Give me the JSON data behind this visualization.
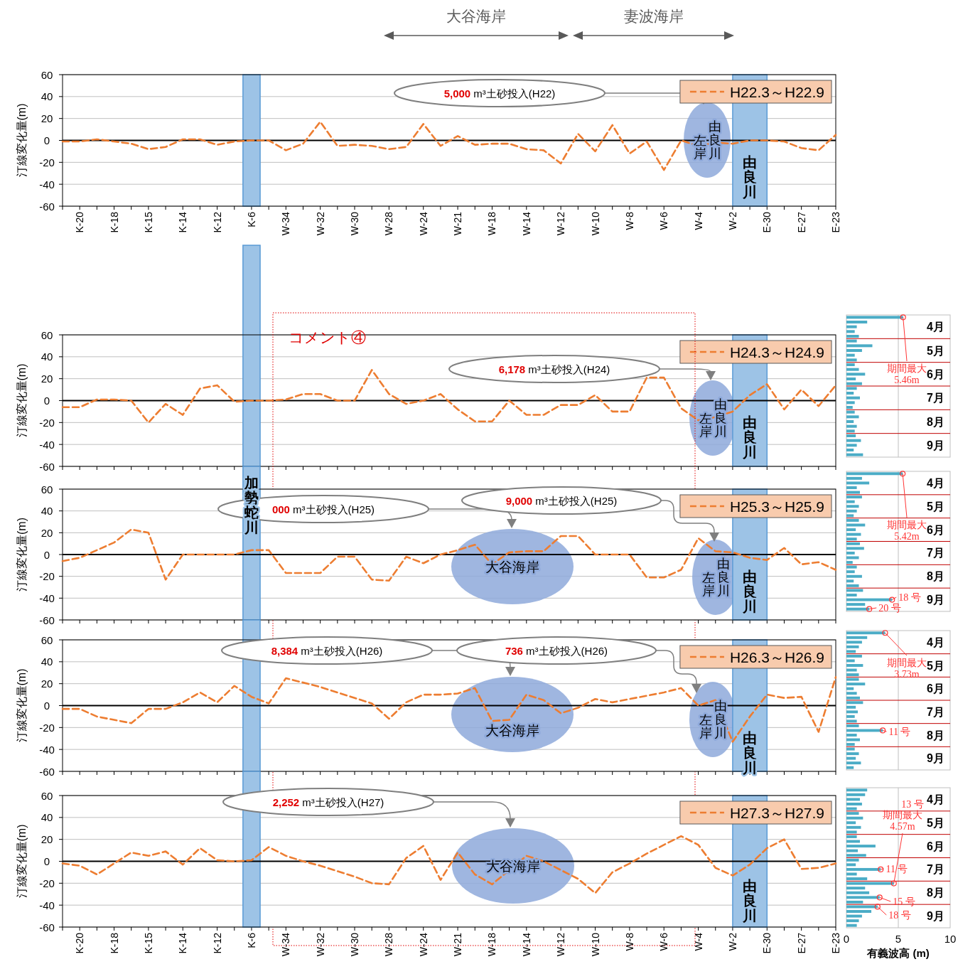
{
  "chart_data": [
    {
      "type": "line",
      "ylabel": "汀線変化量(m)",
      "categories": [
        null,
        "K-20",
        null,
        "K-18",
        null,
        "K-15",
        null,
        "K-14",
        null,
        "K-12",
        null,
        "K-6",
        null,
        "W-34",
        null,
        "W-32",
        null,
        "W-30",
        null,
        "W-28",
        null,
        "W-24",
        null,
        "W-21",
        null,
        "W-18",
        null,
        "W-14",
        null,
        "W-12",
        null,
        "W-10",
        null,
        "W-8",
        null,
        "W-6",
        null,
        "W-4",
        null,
        "W-2",
        null,
        "E-30",
        null,
        "E-27",
        null,
        "E-23"
      ],
      "series": [
        {
          "name": "H22.3～H22.9",
          "color": "#ED7D31",
          "values": [
            -1,
            -1,
            1,
            -1,
            -3,
            -8,
            -6,
            1,
            1,
            -4,
            -1,
            0,
            0,
            -9,
            -3,
            17,
            -5,
            -4,
            -5,
            -8,
            -6,
            15,
            -5,
            4,
            -4,
            -3,
            -3,
            -8,
            -9,
            -21,
            6,
            -10,
            14,
            -12,
            -1,
            -27,
            0,
            -5,
            -2,
            -3,
            0,
            0,
            -1,
            -7,
            -9,
            5
          ]
        }
      ],
      "ylim": [
        -60,
        60
      ],
      "yticks": [
        -60,
        -40,
        -20,
        0,
        20,
        40,
        60
      ],
      "grid": "y",
      "legend": "top right",
      "line_style": "dashed",
      "ref_lines": [
        {
          "axis": "y",
          "value": 0,
          "color": "#000000"
        }
      ],
      "bands": [
        {
          "axis": "x",
          "from": "K-6",
          "to": "K-6",
          "color": "#9DC3E6"
        },
        {
          "axis": "x",
          "from": "W-2",
          "to": "E-30",
          "color": "#9DC3E6",
          "label": "由良川"
        }
      ],
      "annotations": [
        "大谷海岸",
        "妻波海岸",
        "由良川左岸",
        "5,000 m³土砂投入(H22)"
      ]
    },
    {
      "type": "line",
      "ylabel": "汀線変化量(m)",
      "categories": [
        null,
        "K-20",
        null,
        "K-18",
        null,
        "K-15",
        null,
        "K-14",
        null,
        "K-12",
        null,
        "K-6",
        null,
        "W-34",
        null,
        "W-32",
        null,
        "W-30",
        null,
        "W-28",
        null,
        "W-24",
        null,
        "W-21",
        null,
        "W-18",
        null,
        "W-14",
        null,
        "W-12",
        null,
        "W-10",
        null,
        "W-8",
        null,
        "W-6",
        null,
        "W-4",
        null,
        "W-2",
        null,
        "E-30",
        null,
        "E-27",
        null,
        "E-23"
      ],
      "series": [
        {
          "name": "H24.3～H24.9",
          "color": "#ED7D31",
          "values": [
            -6,
            -6,
            1,
            1,
            0,
            -20,
            -3,
            -13,
            11,
            14,
            -1,
            0,
            0,
            1,
            6,
            6,
            0,
            0,
            28,
            6,
            -3,
            0,
            6,
            -8,
            -19,
            -19,
            0,
            -13,
            -13,
            -4,
            -4,
            5,
            -10,
            -10,
            21,
            21,
            -7,
            -18,
            -15,
            -10,
            5,
            15,
            -8,
            10,
            -5,
            14
          ]
        }
      ],
      "ylim": [
        -60,
        60
      ],
      "yticks": [
        -60,
        -40,
        -20,
        0,
        20,
        40,
        60
      ],
      "grid": "y",
      "legend": "top right",
      "line_style": "dashed",
      "tick_labels": "y",
      "ref_lines": [
        {
          "axis": "y",
          "value": 0,
          "color": "#000000"
        }
      ],
      "bands": [
        {
          "axis": "x",
          "from": "K-6",
          "to": "K-6",
          "color": "#9DC3E6"
        },
        {
          "axis": "x",
          "from": "W-2",
          "to": "E-30",
          "color": "#9DC3E6",
          "label": "由良川"
        }
      ],
      "annotations": [
        "由良川左岸",
        "6,178 m³土砂投入(H24)",
        "コメント④"
      ]
    },
    {
      "type": "bar",
      "orientation": "horizontal",
      "categories": [
        null,
        null,
        "4月",
        null,
        null,
        null,
        null,
        "5月",
        null,
        null,
        null,
        null,
        "6月",
        null,
        null,
        null,
        null,
        "7月",
        null,
        null,
        null,
        null,
        "8月",
        null,
        null,
        null,
        null,
        "9月",
        null,
        null
      ],
      "series": [
        {
          "color": "#4BACC6",
          "values": [
            5.46,
            2.0,
            1.0,
            0.8,
            1.2,
            1.0,
            2.5,
            1.5,
            0.8,
            1.0,
            0.8,
            1.2,
            1.8,
            0.9,
            1.5,
            1.0,
            0.7,
            1.3,
            0.8,
            0.6,
            0.8,
            1.2,
            0.7,
            1.0,
            0.8,
            0.9,
            1.4,
            1.0,
            0.7,
            1.6
          ]
        }
      ],
      "xlim": [
        0,
        10
      ],
      "xticks": [
        0,
        5,
        10
      ],
      "tick_labels": "y",
      "ref_lines": [
        {
          "axis": "x",
          "value": 5,
          "color": "#BFBFBF"
        }
      ],
      "annotations": [
        "期間最大\n5.46m"
      ]
    },
    {
      "type": "line",
      "ylabel": "汀線変化量(m)",
      "categories": [
        null,
        "K-20",
        null,
        "K-18",
        null,
        "K-15",
        null,
        "K-14",
        null,
        "K-12",
        null,
        "K-6",
        null,
        "W-34",
        null,
        "W-32",
        null,
        "W-30",
        null,
        "W-28",
        null,
        "W-24",
        null,
        "W-21",
        null,
        "W-18",
        null,
        "W-14",
        null,
        "W-12",
        null,
        "W-10",
        null,
        "W-8",
        null,
        "W-6",
        null,
        "W-4",
        null,
        "W-2",
        null,
        "E-30",
        null,
        "E-27",
        null,
        "E-23"
      ],
      "series": [
        {
          "name": "H25.3～H25.9",
          "color": "#ED7D31",
          "values": [
            -6,
            -3,
            4,
            11,
            23,
            20,
            -23,
            0,
            0,
            0,
            0,
            4,
            4,
            -17,
            -17,
            -17,
            -2,
            -2,
            -23,
            -24,
            -2,
            -8,
            0,
            4,
            9,
            -9,
            2,
            3,
            3,
            17,
            17,
            0,
            0,
            0,
            -21,
            -21,
            -14,
            15,
            3,
            2,
            -3,
            -5,
            6,
            -9,
            -7,
            -14
          ]
        }
      ],
      "ylim": [
        -60,
        60
      ],
      "yticks": [
        -60,
        -40,
        -20,
        0,
        20,
        40,
        60
      ],
      "grid": "y",
      "legend": "top right",
      "line_style": "dashed",
      "tick_labels": "y",
      "ref_lines": [
        {
          "axis": "y",
          "value": 0,
          "color": "#000000"
        }
      ],
      "bands": [
        {
          "axis": "x",
          "from": "K-6",
          "to": "K-6",
          "color": "#9DC3E6",
          "label": "加勢蛇川"
        },
        {
          "axis": "x",
          "from": "W-2",
          "to": "E-30",
          "color": "#9DC3E6",
          "label": "由良川"
        }
      ],
      "annotations": [
        "大谷海岸",
        "由良川左岸",
        "000 m³土砂投入(H25)",
        "9,000 m³土砂投入(H25)"
      ]
    },
    {
      "type": "bar",
      "orientation": "horizontal",
      "categories": [
        null,
        null,
        "4月",
        null,
        null,
        null,
        null,
        "5月",
        null,
        null,
        null,
        null,
        "6月",
        null,
        null,
        null,
        null,
        "7月",
        null,
        null,
        null,
        null,
        "8月",
        null,
        null,
        null,
        null,
        "9月",
        null,
        null
      ],
      "series": [
        {
          "color": "#4BACC6",
          "values": [
            5.42,
            1.5,
            2.2,
            1.0,
            1.3,
            1.5,
            0.8,
            1.2,
            1.0,
            0.7,
            1.2,
            1.8,
            0.9,
            1.4,
            1.0,
            1.3,
            1.7,
            0.8,
            1.2,
            0.6,
            1.0,
            0.8,
            1.5,
            0.7,
            1.2,
            1.6,
            1.0,
            4.4,
            1.8,
            2.2
          ]
        }
      ],
      "xlim": [
        0,
        10
      ],
      "xticks": [
        0,
        5,
        10
      ],
      "tick_labels": "y",
      "ref_lines": [
        {
          "axis": "x",
          "value": 5,
          "color": "#BFBFBF"
        }
      ],
      "annotations": [
        "期間最大\n5.42m",
        "18 号",
        "20 号"
      ]
    },
    {
      "type": "line",
      "ylabel": "汀線変化量(m)",
      "categories": [
        null,
        "K-20",
        null,
        "K-18",
        null,
        "K-15",
        null,
        "K-14",
        null,
        "K-12",
        null,
        "K-6",
        null,
        "W-34",
        null,
        "W-32",
        null,
        "W-30",
        null,
        "W-28",
        null,
        "W-24",
        null,
        "W-21",
        null,
        "W-18",
        null,
        "W-14",
        null,
        "W-12",
        null,
        "W-10",
        null,
        "W-8",
        null,
        "W-6",
        null,
        "W-4",
        null,
        "W-2",
        null,
        "E-30",
        null,
        "E-27",
        null,
        "E-23"
      ],
      "series": [
        {
          "name": "H26.3～H26.9",
          "color": "#ED7D31",
          "values": [
            -3,
            -3,
            -10,
            -13,
            -16,
            -3,
            -3,
            3,
            12,
            3,
            18,
            8,
            2,
            25,
            21,
            17,
            12,
            7,
            2,
            -12,
            3,
            10,
            10,
            11,
            16,
            -14,
            -13,
            10,
            5,
            -7,
            -2,
            6,
            3,
            6,
            9,
            12,
            16,
            0,
            5,
            -33,
            -10,
            10,
            7,
            8,
            -24,
            26
          ]
        }
      ],
      "ylim": [
        -60,
        60
      ],
      "yticks": [
        -60,
        -40,
        -20,
        0,
        20,
        40,
        60
      ],
      "grid": "y",
      "legend": "top right",
      "line_style": "dashed",
      "tick_labels": "y",
      "ref_lines": [
        {
          "axis": "y",
          "value": 0,
          "color": "#000000"
        }
      ],
      "bands": [
        {
          "axis": "x",
          "from": "K-6",
          "to": "K-6",
          "color": "#9DC3E6"
        },
        {
          "axis": "x",
          "from": "W-2",
          "to": "E-30",
          "color": "#9DC3E6",
          "label": "由良川"
        }
      ],
      "annotations": [
        "大谷海岸",
        "由良川左岸",
        "8,384 m³土砂投入(H26)",
        "736 m³土砂投入(H26)"
      ]
    },
    {
      "type": "bar",
      "orientation": "horizontal",
      "categories": [
        null,
        null,
        "4月",
        null,
        null,
        null,
        null,
        "5月",
        null,
        null,
        null,
        null,
        "6月",
        null,
        null,
        null,
        null,
        "7月",
        null,
        null,
        null,
        null,
        "8月",
        null,
        null,
        null,
        null,
        "9月",
        null,
        null
      ],
      "series": [
        {
          "color": "#4BACC6",
          "values": [
            3.73,
            2.0,
            1.5,
            1.2,
            0.9,
            1.5,
            0.8,
            1.6,
            1.0,
            1.2,
            1.2,
            1.8,
            0.7,
            1.0,
            1.3,
            1.6,
            0.9,
            1.1,
            0.8,
            1.0,
            1.2,
            3.5,
            1.0,
            1.3,
            0.8,
            0.8,
            1.2,
            0.9,
            1.4,
            0.7
          ]
        }
      ],
      "xlim": [
        0,
        10
      ],
      "xticks": [
        0,
        5,
        10
      ],
      "tick_labels": "y",
      "ref_lines": [
        {
          "axis": "x",
          "value": 5,
          "color": "#BFBFBF"
        }
      ],
      "annotations": [
        "期間最大\n3.73m",
        "11 号"
      ]
    },
    {
      "type": "line",
      "ylabel": "汀線変化量(m)",
      "categories": [
        null,
        "K-20",
        null,
        "K-18",
        null,
        "K-15",
        null,
        "K-14",
        null,
        "K-12",
        null,
        "K-6",
        null,
        "W-34",
        null,
        "W-32",
        null,
        "W-30",
        null,
        "W-28",
        null,
        "W-24",
        null,
        "W-21",
        null,
        "W-18",
        null,
        "W-14",
        null,
        "W-12",
        null,
        "W-10",
        null,
        "W-8",
        null,
        "W-6",
        null,
        "W-4",
        null,
        "W-2",
        null,
        "E-30",
        null,
        "E-27",
        null,
        "E-23"
      ],
      "series": [
        {
          "name": "H27.3～H27.9",
          "color": "#ED7D31",
          "values": [
            -2,
            -4,
            -12,
            -2,
            8,
            5,
            9,
            -3,
            12,
            1,
            0,
            1,
            13,
            5,
            0,
            -4,
            -9,
            -14,
            -20,
            -21,
            3,
            14,
            -17,
            8,
            -12,
            -21,
            -8,
            5,
            0,
            -8,
            -16,
            -29,
            -10,
            -2,
            7,
            15,
            23,
            15,
            -6,
            -13,
            -3,
            12,
            20,
            -7,
            -6,
            -2
          ]
        }
      ],
      "ylim": [
        -60,
        60
      ],
      "yticks": [
        -60,
        -40,
        -20,
        0,
        20,
        40,
        60
      ],
      "grid": "y",
      "legend": "top right",
      "line_style": "dashed",
      "ref_lines": [
        {
          "axis": "y",
          "value": 0,
          "color": "#000000"
        }
      ],
      "bands": [
        {
          "axis": "x",
          "from": "K-6",
          "to": "K-6",
          "color": "#9DC3E6"
        },
        {
          "axis": "x",
          "from": "W-2",
          "to": "E-30",
          "color": "#9DC3E6",
          "label": "由良川"
        }
      ],
      "annotations": [
        "大谷海岸",
        "2,252 m³土砂投入(H27)"
      ]
    },
    {
      "type": "bar",
      "orientation": "horizontal",
      "xlabel": "有義波高 (m)",
      "categories": [
        null,
        null,
        "4月",
        null,
        null,
        null,
        null,
        "5月",
        null,
        null,
        null,
        null,
        "6月",
        null,
        null,
        null,
        null,
        "7月",
        null,
        null,
        null,
        null,
        "8月",
        null,
        null,
        null,
        null,
        "9月",
        null,
        null
      ],
      "series": [
        {
          "color": "#4BACC6",
          "values": [
            2.0,
            1.8,
            1.3,
            1.5,
            1.0,
            1.2,
            1.6,
            0.9,
            1.4,
            1.0,
            1.0,
            1.3,
            2.8,
            1.1,
            1.9,
            1.2,
            0.9,
            3.3,
            1.0,
            2.0,
            4.57,
            1.8,
            2.2,
            3.2,
            1.6,
            3.0,
            2.4,
            1.5,
            1.2,
            1.0
          ]
        }
      ],
      "xlim": [
        0,
        10
      ],
      "xticks": [
        0,
        5,
        10
      ],
      "ref_lines": [
        {
          "axis": "x",
          "value": 5,
          "color": "#BFBFBF"
        }
      ],
      "annotations": [
        "13 号",
        "期間最大\n4.57m",
        "11 号",
        "15 号",
        "18 号"
      ]
    }
  ]
}
